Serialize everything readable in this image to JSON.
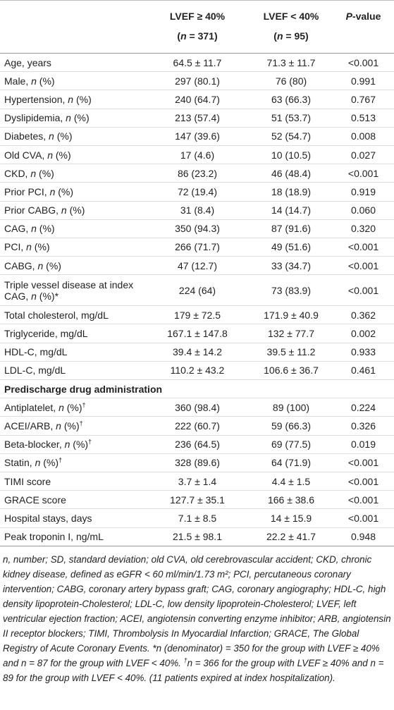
{
  "table": {
    "columns": [
      {
        "label": "LVEF ≥ 40%",
        "count": "(n = 371)"
      },
      {
        "label": "LVEF < 40%",
        "count": "(n = 95)"
      }
    ],
    "pvalue": "P-value",
    "rows": [
      [
        "Age, years",
        "64.5 ± 11.7",
        "71.3 ± 11.7",
        "<0.001"
      ],
      [
        "Male, n (%)",
        "297 (80.1)",
        "76 (80)",
        "0.991"
      ],
      [
        "Hypertension, n (%)",
        "240 (64.7)",
        "63 (66.3)",
        "0.767"
      ],
      [
        "Dyslipidemia, n (%)",
        "213 (57.4)",
        "51 (53.7)",
        "0.513"
      ],
      [
        "Diabetes, n (%)",
        "147 (39.6)",
        "52 (54.7)",
        "0.008"
      ],
      [
        "Old CVA, n (%)",
        "17 (4.6)",
        "10 (10.5)",
        "0.027"
      ],
      [
        "CKD, n (%)",
        "86 (23.2)",
        "46 (48.4)",
        "<0.001"
      ],
      [
        "Prior PCI, n (%)",
        "72 (19.4)",
        "18 (18.9)",
        "0.919"
      ],
      [
        "Prior CABG, n (%)",
        "31 (8.4)",
        "14 (14.7)",
        "0.060"
      ],
      [
        "CAG, n (%)",
        "350 (94.3)",
        "87 (91.6)",
        "0.320"
      ],
      [
        "PCI, n (%)",
        "266 (71.7)",
        "49 (51.6)",
        "<0.001"
      ],
      [
        "CABG, n (%)",
        "47 (12.7)",
        "33 (34.7)",
        "<0.001"
      ],
      [
        "Triple vessel disease at index CAG, n (%)*",
        "224 (64)",
        "73 (83.9)",
        "<0.001"
      ],
      [
        "Total cholesterol, mg/dL",
        "179 ± 72.5",
        "171.9 ± 40.9",
        "0.362"
      ],
      [
        "Triglyceride, mg/dL",
        "167.1 ± 147.8",
        "132 ± 77.7",
        "0.002"
      ],
      [
        "HDL-C, mg/dL",
        "39.4 ± 14.2",
        "39.5 ± 11.2",
        "0.933"
      ],
      [
        "LDL-C, mg/dL",
        "110.2 ± 43.2",
        "106.6 ± 36.7",
        "0.461"
      ],
      {
        "section": "Predischarge drug administration"
      },
      [
        "Antiplatelet, n (%)†",
        "360 (98.4)",
        "89 (100)",
        "0.224"
      ],
      [
        "ACEI/ARB, n (%)†",
        "222 (60.7)",
        "59 (66.3)",
        "0.326"
      ],
      [
        "Beta-blocker, n (%)†",
        "236 (64.5)",
        "69 (77.5)",
        "0.019"
      ],
      [
        "Statin, n (%)†",
        "328 (89.6)",
        "64 (71.9)",
        "<0.001"
      ],
      [
        "TIMI score",
        "3.7 ± 1.4",
        "4.4 ± 1.5",
        "<0.001"
      ],
      [
        "GRACE score",
        "127.7 ± 35.1",
        "166 ± 38.6",
        "<0.001"
      ],
      [
        "Hospital stays, days",
        "7.1 ± 8.5",
        "14 ± 15.9",
        "<0.001"
      ],
      [
        "Peak troponin I, ng/mL",
        "21.5 ± 98.1",
        "22.2 ± 41.7",
        "0.948"
      ]
    ],
    "footnote": "n, number; SD, standard deviation; old CVA, old cerebrovascular accident; CKD, chronic kidney disease, defined as eGFR < 60 ml/min/1.73 m²; PCI, percutaneous coronary intervention; CABG, coronary artery bypass graft; CAG, coronary angiography; HDL-C, high density lipoprotein-Cholesterol; LDL-C, low density lipoprotein-Cholesterol; LVEF, left ventricular ejection fraction; ACEI, angiotensin converting enzyme inhibitor; ARB, angiotensin II receptor blockers; TIMI, Thrombolysis In Myocardial Infarction; GRACE, The Global Registry of Acute Coronary Events. *n (denominator) = 350 for the group with LVEF ≥ 40% and n = 87 for the group with LVEF < 40%. †n = 366 for the group with LVEF ≥ 40% and n = 89 for the group with LVEF < 40%. (11 patients expired at index hospitalization)."
  }
}
